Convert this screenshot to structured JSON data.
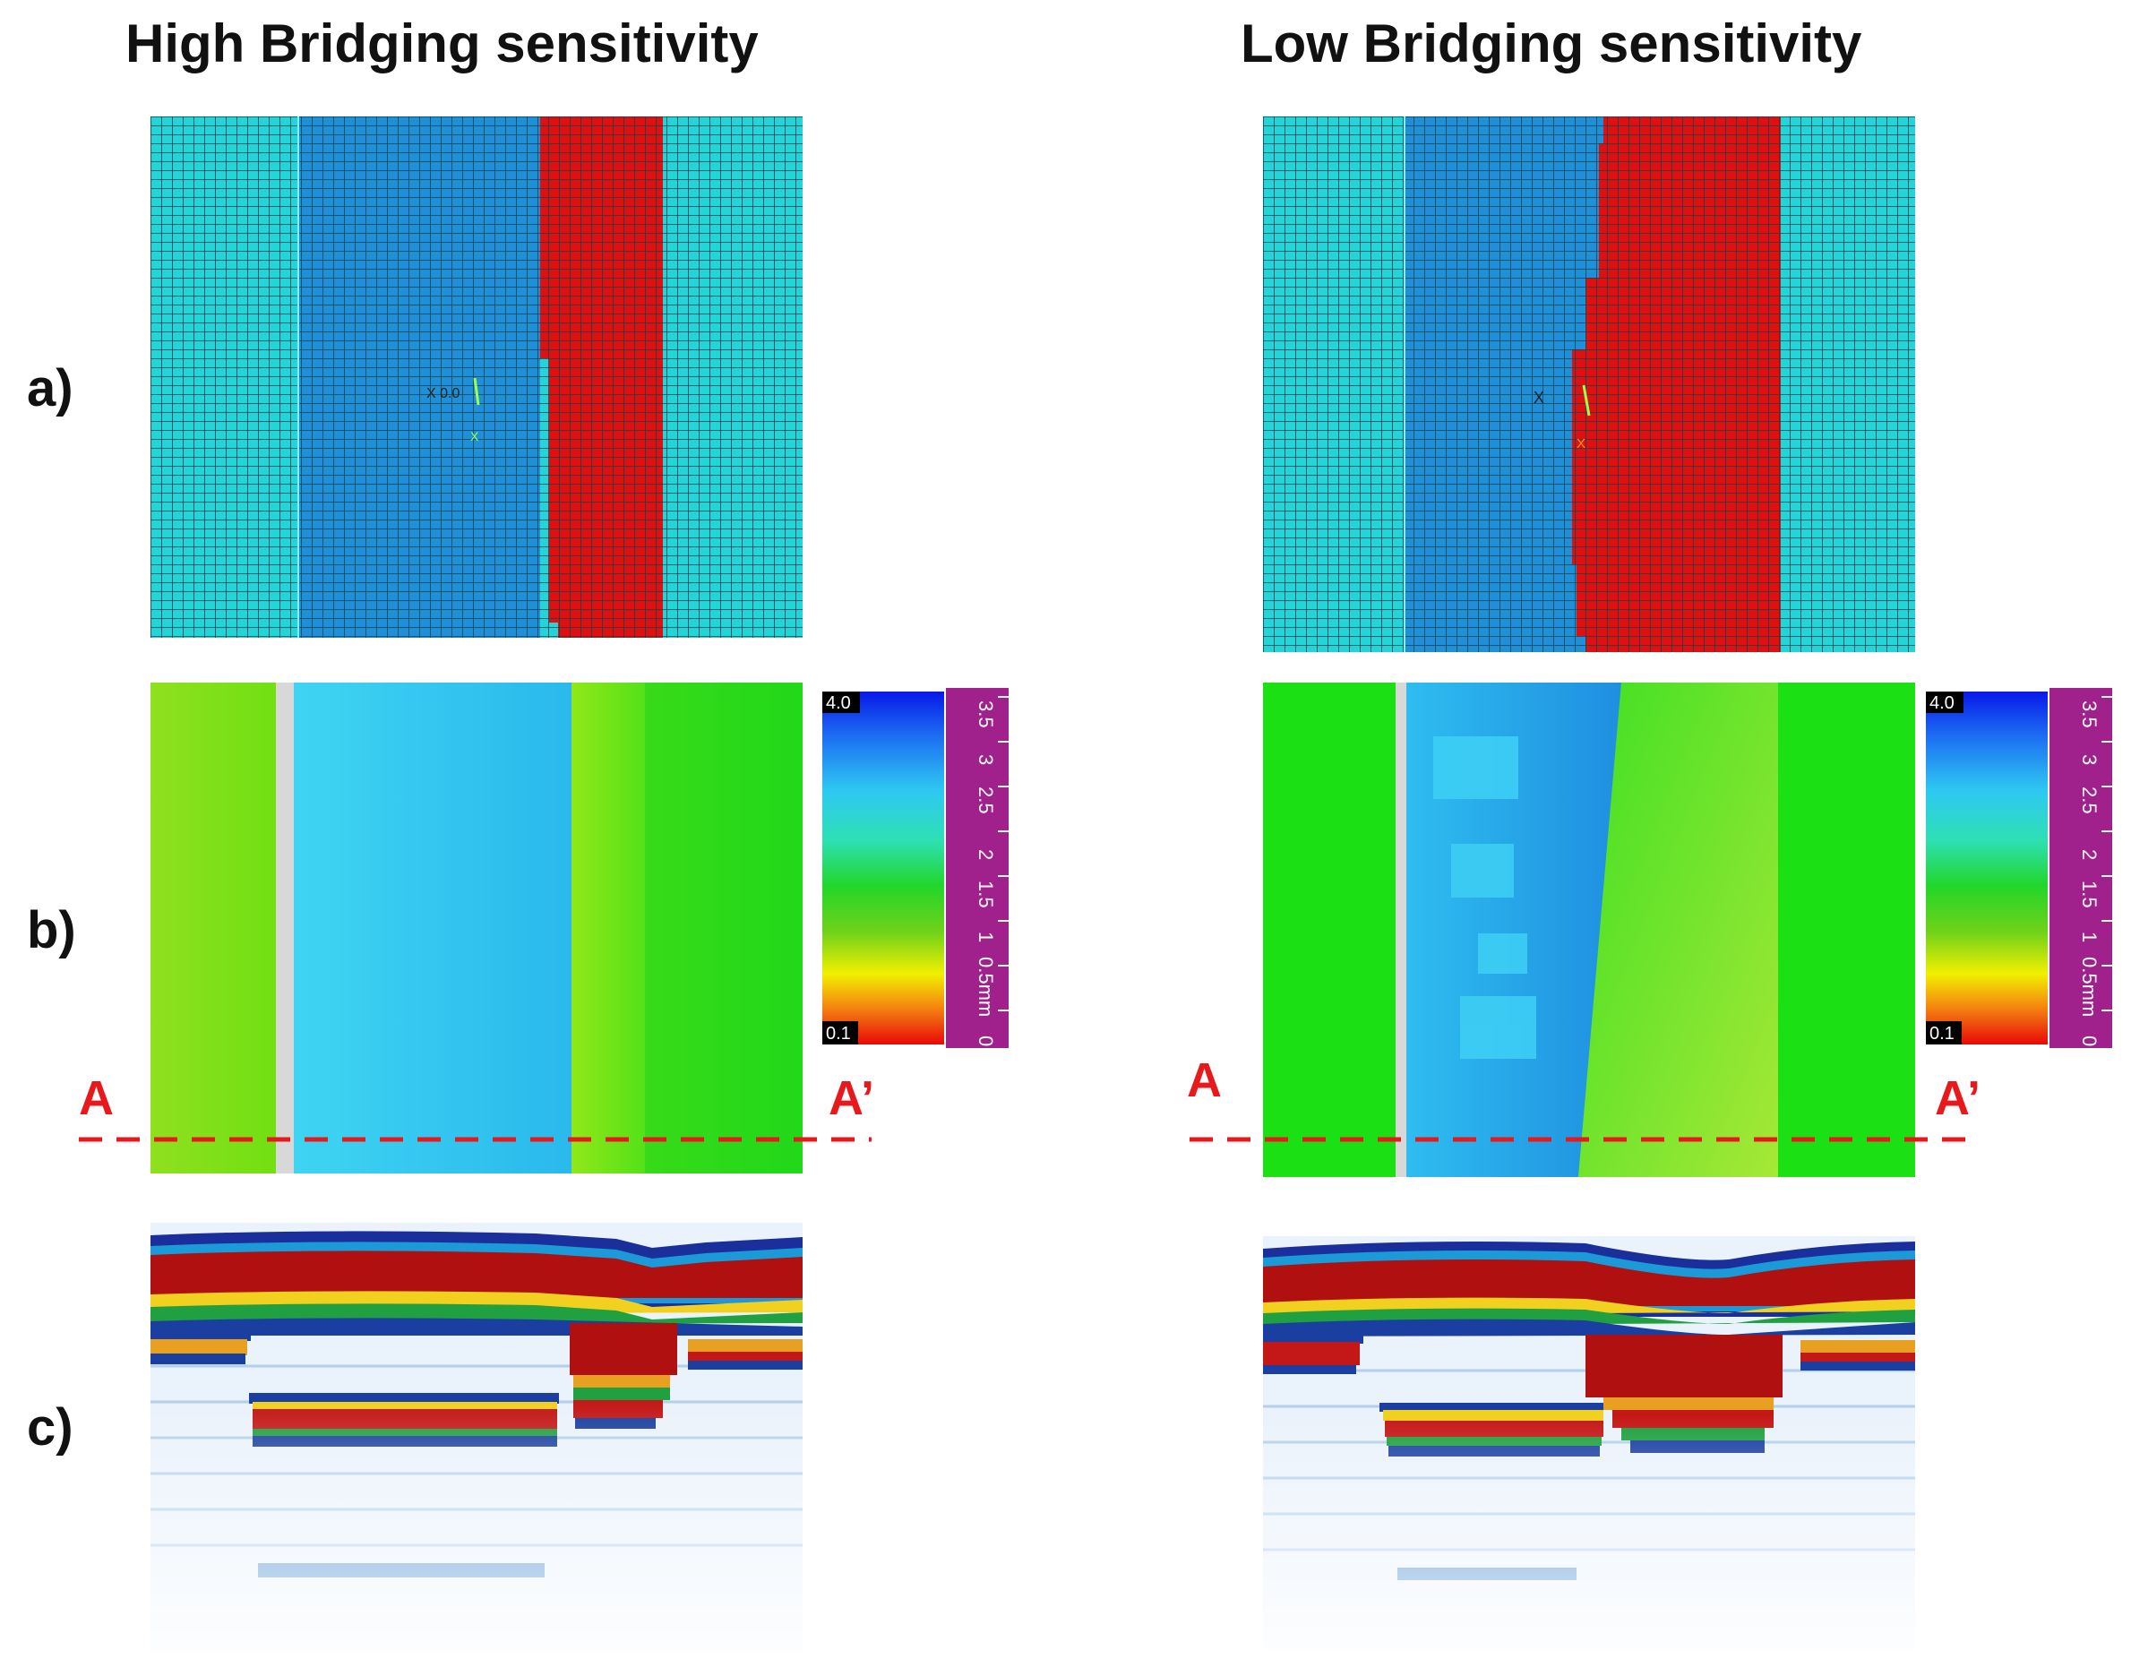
{
  "panels": {
    "left": {
      "title": "High Bridging sensitivity"
    },
    "right": {
      "title": "Low Bridging sensitivity"
    }
  },
  "row_labels": {
    "a": "a)",
    "b": "b)",
    "c": "c)"
  },
  "section_line": {
    "start_label": "A",
    "end_label": "A’"
  },
  "mesh_markers": {
    "left": "X 0.0",
    "left_small": "X",
    "right": "X",
    "right_small": "X"
  },
  "legend": {
    "max_value": "4.0",
    "min_value": "0.1",
    "scale_ticks": [
      "3.5",
      "3",
      "2.5",
      "2",
      "1.5",
      "1",
      "0.5mm",
      "0"
    ]
  },
  "colors": {
    "mesh_outer": "#23d4d8",
    "mesh_inner": "#1f8fd8",
    "mesh_red": "#e01010",
    "thickness_green": "#22e010",
    "thickness_blue": "#2ec8f0",
    "section_line": "#e8191c",
    "ruler_purple": "#a0208c"
  }
}
